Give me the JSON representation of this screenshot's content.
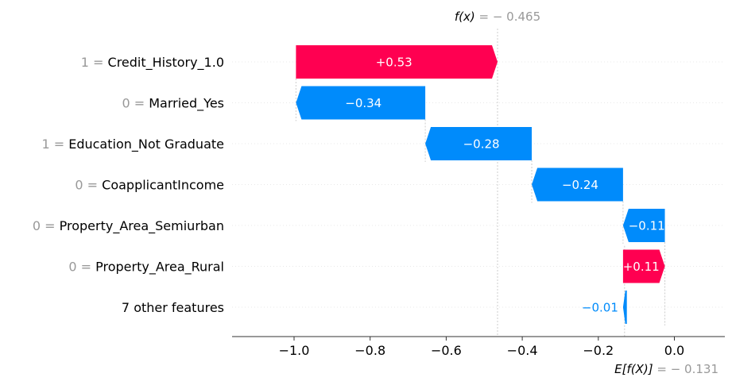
{
  "chart_data": {
    "type": "waterfall",
    "base_value": -0.131,
    "output_value": -0.465,
    "annotations": {
      "fx_label": "f(x)",
      "fx_value": " = − 0.465",
      "efx_label": "E[f(X)]",
      "efx_value": " = − 0.131"
    },
    "xlim": [
      -1.16,
      0.13
    ],
    "xticks": [
      {
        "value": -1.0,
        "label": "−1.0"
      },
      {
        "value": -0.8,
        "label": "−0.8"
      },
      {
        "value": -0.6,
        "label": "−0.6"
      },
      {
        "value": -0.4,
        "label": "−0.4"
      },
      {
        "value": -0.2,
        "label": "−0.2"
      },
      {
        "value": 0.0,
        "label": "0.0"
      }
    ],
    "features": [
      {
        "value": "1",
        "name": "Credit_History_1.0",
        "start": -0.465,
        "end": -0.995,
        "contribution": 0.53,
        "label": "+0.53"
      },
      {
        "value": "0",
        "name": "Married_Yes",
        "start": -0.995,
        "end": -0.655,
        "contribution": -0.34,
        "label": "−0.34"
      },
      {
        "value": "1",
        "name": "Education_Not Graduate",
        "start": -0.655,
        "end": -0.375,
        "contribution": -0.28,
        "label": "−0.28"
      },
      {
        "value": "0",
        "name": "CoapplicantIncome",
        "start": -0.375,
        "end": -0.135,
        "contribution": -0.24,
        "label": "−0.24"
      },
      {
        "value": "0",
        "name": "Property_Area_Semiurban",
        "start": -0.135,
        "end": -0.025,
        "contribution": -0.11,
        "label": "−0.11"
      },
      {
        "value": "0",
        "name": "Property_Area_Rural",
        "start": -0.135,
        "end": -0.025,
        "contribution": 0.11,
        "label": "+0.11"
      },
      {
        "value": "",
        "name": "7 other features",
        "start": -0.135,
        "end": -0.125,
        "contribution": -0.01,
        "label": "−0.01"
      }
    ],
    "colors": {
      "positive": "#ff0051",
      "negative": "#008bfb",
      "grid": "#cccccc",
      "axis": "#333333",
      "muted": "#999999"
    }
  }
}
